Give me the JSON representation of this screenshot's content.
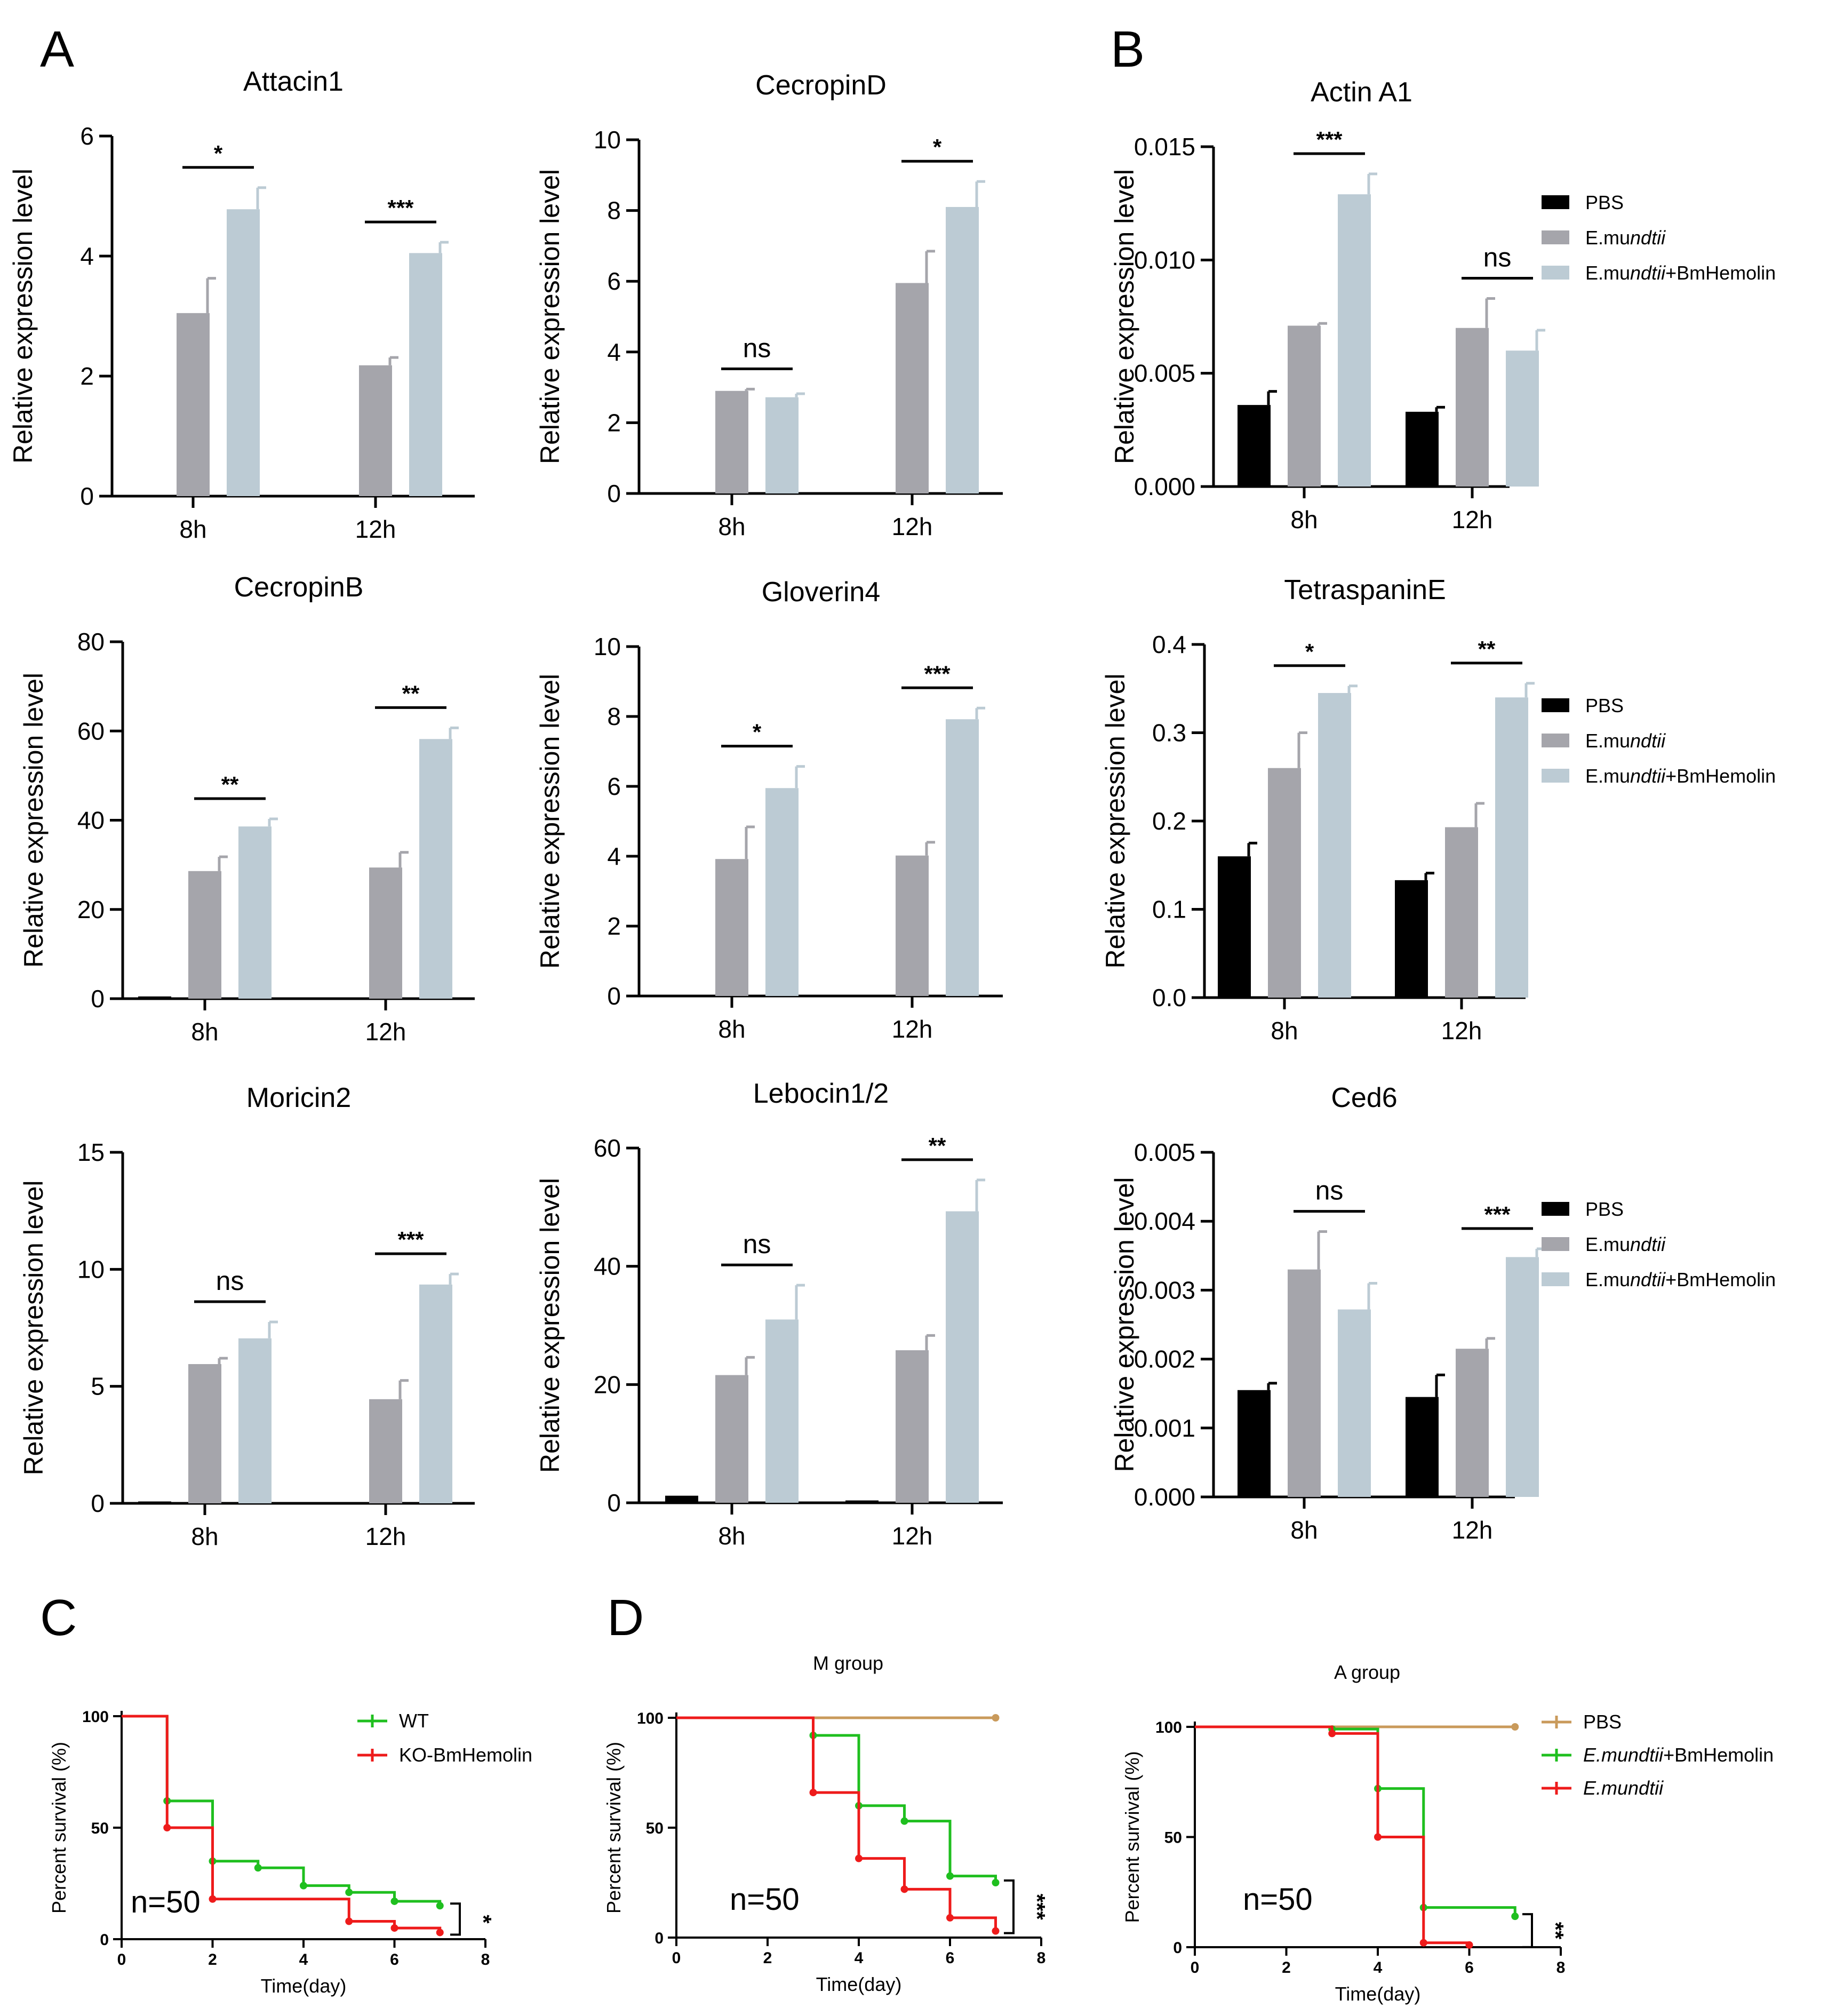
{
  "panels": {
    "A": {
      "label": "A"
    },
    "B": {
      "label": "B"
    },
    "C": {
      "label": "C"
    },
    "D": {
      "label": "D"
    }
  },
  "colors": {
    "pbs": "#000000",
    "emundtii": "#a5a5ab",
    "hemolin": "#bccbd4",
    "wt": "#1fbf1f",
    "ko": "#ee1b1b",
    "pbs_km": "#c99a5b"
  },
  "legend_bars": {
    "pbs": "PBS",
    "em_prefix": "E.mu",
    "em_italic": "ndtii",
    "hem_prefix": "E.mu",
    "hem_italic": "ndtii",
    "hem_suffix": "+BmHemolin"
  },
  "chart_data": [
    {
      "id": "attacin1",
      "type": "bar",
      "title": "Attacin1",
      "ylabel": "Relative expression level",
      "ylim": [
        0,
        6
      ],
      "yticks": [
        "0",
        "2",
        "4",
        "6"
      ],
      "categories": [
        "8h",
        "12h"
      ],
      "series": [
        {
          "name": "PBS",
          "values": [
            0.02,
            0
          ],
          "errors": [
            0,
            0
          ]
        },
        {
          "name": "E.mundtii",
          "values": [
            3.05,
            2.18
          ],
          "errors": [
            0.58,
            0.13
          ]
        },
        {
          "name": "E.mundtii+BmHemolin",
          "values": [
            4.78,
            4.05
          ],
          "errors": [
            0.36,
            0.18
          ]
        }
      ],
      "sig": [
        {
          "label": "*",
          "group": 0
        },
        {
          "label": "***",
          "group": 1
        }
      ]
    },
    {
      "id": "cecropinD",
      "type": "bar",
      "title": "CecropinD",
      "ylabel": "Relative expression level",
      "ylim": [
        0,
        10
      ],
      "yticks": [
        "0",
        "2",
        "4",
        "6",
        "8",
        "10"
      ],
      "categories": [
        "8h",
        "12h"
      ],
      "series": [
        {
          "name": "PBS",
          "values": [
            0.03,
            0.03
          ],
          "errors": [
            0,
            0
          ]
        },
        {
          "name": "E.mundtii",
          "values": [
            2.9,
            5.95
          ],
          "errors": [
            0.05,
            0.9
          ]
        },
        {
          "name": "E.mundtii+BmHemolin",
          "values": [
            2.72,
            8.1
          ],
          "errors": [
            0.1,
            0.72
          ]
        }
      ],
      "sig": [
        {
          "label": "ns",
          "group": 0
        },
        {
          "label": "*",
          "group": 1
        }
      ]
    },
    {
      "id": "cecropinB",
      "type": "bar",
      "title": "CecropinB",
      "ylabel": "Relative expression level",
      "ylim": [
        0,
        80
      ],
      "yticks": [
        "0",
        "20",
        "40",
        "60",
        "80"
      ],
      "categories": [
        "8h",
        "12h"
      ],
      "series": [
        {
          "name": "PBS",
          "values": [
            0.5,
            0
          ],
          "errors": [
            0,
            0
          ]
        },
        {
          "name": "E.mundtii",
          "values": [
            28.6,
            29.4
          ],
          "errors": [
            3.2,
            3.4
          ]
        },
        {
          "name": "E.mundtii+BmHemolin",
          "values": [
            38.6,
            58.2
          ],
          "errors": [
            1.7,
            2.5
          ]
        }
      ],
      "sig": [
        {
          "label": "**",
          "group": 0
        },
        {
          "label": "**",
          "group": 1
        }
      ]
    },
    {
      "id": "gloverin4",
      "type": "bar",
      "title": "Gloverin4",
      "ylabel": "Relative expression level",
      "ylim": [
        0,
        10
      ],
      "yticks": [
        "0",
        "2",
        "4",
        "6",
        "8",
        "10"
      ],
      "categories": [
        "8h",
        "12h"
      ],
      "series": [
        {
          "name": "PBS",
          "values": [
            0.03,
            0
          ],
          "errors": [
            0,
            0
          ]
        },
        {
          "name": "E.mundtii",
          "values": [
            3.92,
            4.02
          ],
          "errors": [
            0.92,
            0.38
          ]
        },
        {
          "name": "E.mundtii+BmHemolin",
          "values": [
            5.95,
            7.92
          ],
          "errors": [
            0.62,
            0.32
          ]
        }
      ],
      "sig": [
        {
          "label": "*",
          "group": 0
        },
        {
          "label": "***",
          "group": 1
        }
      ]
    },
    {
      "id": "moricin2",
      "type": "bar",
      "title": "Moricin2",
      "ylabel": "Relative expression level",
      "ylim": [
        0,
        15
      ],
      "yticks": [
        "0",
        "5",
        "10",
        "15"
      ],
      "categories": [
        "8h",
        "12h"
      ],
      "series": [
        {
          "name": "PBS",
          "values": [
            0.08,
            0.03
          ],
          "errors": [
            0,
            0
          ]
        },
        {
          "name": "E.mundtii",
          "values": [
            5.95,
            4.45
          ],
          "errors": [
            0.25,
            0.8
          ]
        },
        {
          "name": "E.mundtii+BmHemolin",
          "values": [
            7.05,
            9.35
          ],
          "errors": [
            0.7,
            0.45
          ]
        }
      ],
      "sig": [
        {
          "label": "ns",
          "group": 0
        },
        {
          "label": "***",
          "group": 1
        }
      ]
    },
    {
      "id": "lebocin12",
      "type": "bar",
      "title": "Lebocin1/2",
      "ylabel": "Relative expression level",
      "ylim": [
        0,
        60
      ],
      "yticks": [
        "0",
        "20",
        "40",
        "60"
      ],
      "categories": [
        "8h",
        "12h"
      ],
      "series": [
        {
          "name": "PBS",
          "values": [
            1.2,
            0.4
          ],
          "errors": [
            0,
            0
          ]
        },
        {
          "name": "E.mundtii",
          "values": [
            21.6,
            25.8
          ],
          "errors": [
            3.0,
            2.5
          ]
        },
        {
          "name": "E.mundtii+BmHemolin",
          "values": [
            31.0,
            49.3
          ],
          "errors": [
            5.8,
            5.3
          ]
        }
      ],
      "sig": [
        {
          "label": "ns",
          "group": 0
        },
        {
          "label": "**",
          "group": 1
        }
      ]
    },
    {
      "id": "actinA1",
      "type": "bar",
      "title": "Actin A1",
      "ylabel": "Relative expression level",
      "ylim": [
        0,
        0.015
      ],
      "yticks": [
        "0.000",
        "0.005",
        "0.010",
        "0.015"
      ],
      "categories": [
        "8h",
        "12h"
      ],
      "series": [
        {
          "name": "PBS",
          "values": [
            0.0036,
            0.0033
          ],
          "errors": [
            0.0006,
            0.0002
          ]
        },
        {
          "name": "E.mundtii",
          "values": [
            0.0071,
            0.007
          ],
          "errors": [
            0.0001,
            0.0013
          ]
        },
        {
          "name": "E.mundtii+BmHemolin",
          "values": [
            0.0129,
            0.006
          ],
          "errors": [
            0.0009,
            0.0009
          ]
        }
      ],
      "sig": [
        {
          "label": "***",
          "group": 0
        },
        {
          "label": "ns",
          "group": 1
        }
      ]
    },
    {
      "id": "tetraspaninE",
      "type": "bar",
      "title": "TetraspaninE",
      "ylabel": "Relative expression level",
      "ylim": [
        0,
        0.4
      ],
      "yticks": [
        "0.0",
        "0.1",
        "0.2",
        "0.3",
        "0.4"
      ],
      "categories": [
        "8h",
        "12h"
      ],
      "series": [
        {
          "name": "PBS",
          "values": [
            0.16,
            0.133
          ],
          "errors": [
            0.015,
            0.008
          ]
        },
        {
          "name": "E.mundtii",
          "values": [
            0.26,
            0.193
          ],
          "errors": [
            0.04,
            0.027
          ]
        },
        {
          "name": "E.mundtii+BmHemolin",
          "values": [
            0.345,
            0.34
          ],
          "errors": [
            0.008,
            0.016
          ]
        }
      ],
      "sig": [
        {
          "label": "*",
          "group": 0
        },
        {
          "label": "**",
          "group": 1
        }
      ]
    },
    {
      "id": "ced6",
      "type": "bar",
      "title": "Ced6",
      "ylabel": "Relative expression level",
      "ylim": [
        0,
        0.005
      ],
      "yticks": [
        "0.000",
        "0.001",
        "0.002",
        "0.003",
        "0.004",
        "0.005"
      ],
      "categories": [
        "8h",
        "12h"
      ],
      "series": [
        {
          "name": "PBS",
          "values": [
            0.00155,
            0.00145
          ],
          "errors": [
            0.0001,
            0.00032
          ]
        },
        {
          "name": "E.mundtii",
          "values": [
            0.0033,
            0.00215
          ],
          "errors": [
            0.00055,
            0.00015
          ]
        },
        {
          "name": "E.mundtii+BmHemolin",
          "values": [
            0.00272,
            0.00348
          ],
          "errors": [
            0.00038,
            0.00012
          ]
        }
      ],
      "sig": [
        {
          "label": "ns",
          "group": 0
        },
        {
          "label": "***",
          "group": 1
        }
      ]
    },
    {
      "id": "kmC",
      "type": "line",
      "title": "",
      "xlabel": "Time(day)",
      "ylabel": "Percent survival (%)",
      "xlim": [
        0,
        8
      ],
      "ylim": [
        0,
        100
      ],
      "xticks": [
        "0",
        "2",
        "4",
        "6",
        "8"
      ],
      "yticks": [
        "0",
        "50",
        "100"
      ],
      "series": [
        {
          "name": "WT",
          "x": [
            0,
            1,
            2,
            3,
            4,
            5,
            6,
            7
          ],
          "y": [
            100,
            62,
            35,
            32,
            24,
            21,
            17,
            15
          ]
        },
        {
          "name": "KO-BmHemolin",
          "x": [
            0,
            1,
            2,
            5,
            6,
            7
          ],
          "y": [
            100,
            50,
            18,
            8,
            5,
            3
          ]
        }
      ],
      "annotation": "n=50",
      "sig": "*"
    },
    {
      "id": "kmM",
      "type": "line",
      "title": "M group",
      "xlabel": "Time(day)",
      "ylabel": "Percent survival (%)",
      "xlim": [
        0,
        8
      ],
      "ylim": [
        0,
        100
      ],
      "xticks": [
        "0",
        "2",
        "4",
        "6",
        "8"
      ],
      "yticks": [
        "0",
        "50",
        "100"
      ],
      "series": [
        {
          "name": "PBS",
          "x": [
            0,
            7
          ],
          "y": [
            100,
            100
          ]
        },
        {
          "name": "E.mundtii+BmHemolin",
          "x": [
            0,
            3,
            4,
            5,
            6,
            7
          ],
          "y": [
            100,
            92,
            60,
            53,
            28,
            25
          ]
        },
        {
          "name": "E.mundtii",
          "x": [
            0,
            3,
            4,
            5,
            6,
            7
          ],
          "y": [
            100,
            66,
            36,
            22,
            9,
            3
          ]
        }
      ],
      "annotation": "n=50",
      "sig": "***"
    },
    {
      "id": "kmA",
      "type": "line",
      "title": "A group",
      "xlabel": "Time(day)",
      "ylabel": "Percent survival (%)",
      "xlim": [
        0,
        8
      ],
      "ylim": [
        0,
        100
      ],
      "xticks": [
        "0",
        "2",
        "4",
        "6",
        "8"
      ],
      "yticks": [
        "0",
        "50",
        "100"
      ],
      "series": [
        {
          "name": "PBS",
          "x": [
            0,
            7
          ],
          "y": [
            100,
            100
          ]
        },
        {
          "name": "E.mundtii+BmHemolin",
          "x": [
            0,
            3,
            4,
            5,
            7
          ],
          "y": [
            100,
            99,
            72,
            18,
            14
          ]
        },
        {
          "name": "E.mundtii",
          "x": [
            0,
            3,
            4,
            5,
            6
          ],
          "y": [
            100,
            97,
            50,
            2,
            1
          ]
        }
      ],
      "annotation": "n=50",
      "sig": "**"
    }
  ],
  "km_legend_C": {
    "wt": "WT",
    "ko": "KO-BmHemolin"
  },
  "km_legend_A": {
    "pbs": "PBS",
    "hem_italic": "E.mundtii",
    "hem_suffix": "+BmHemolin",
    "em_italic": "E.mundtii"
  }
}
